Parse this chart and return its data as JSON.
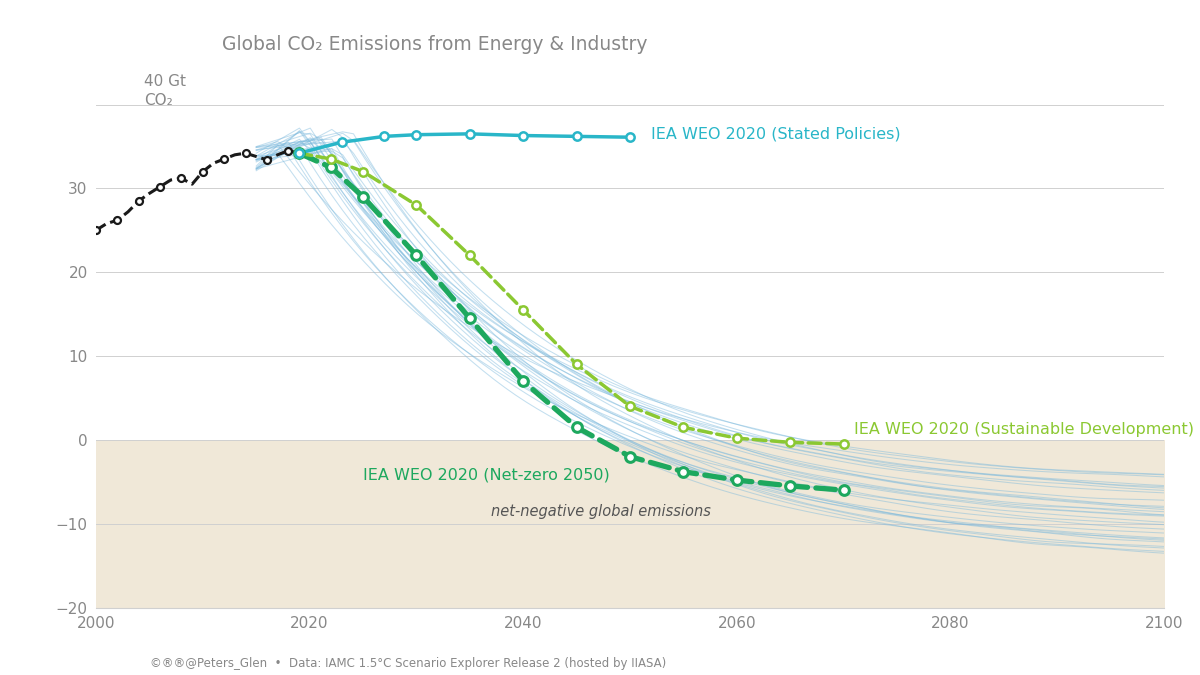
{
  "title": "Global CO₂ Emissions from Energy & Industry",
  "xlim": [
    2000,
    2100
  ],
  "ylim": [
    -20,
    42
  ],
  "yticks": [
    -20,
    -10,
    0,
    10,
    20,
    30,
    40
  ],
  "xticks": [
    2000,
    2020,
    2040,
    2060,
    2080,
    2100
  ],
  "background_color": "#ffffff",
  "neg_fill_color": "#f0e8d8",
  "footer": "©®®@Peters_Glen  •  Data: IAMC 1.5°C Scenario Explorer Release 2 (hosted by IIASA)",
  "historical_years": [
    2000,
    2001,
    2002,
    2003,
    2004,
    2005,
    2006,
    2007,
    2008,
    2009,
    2010,
    2011,
    2012,
    2013,
    2014,
    2015,
    2016,
    2017,
    2018,
    2019
  ],
  "historical_values": [
    25.0,
    25.8,
    26.2,
    27.2,
    28.5,
    29.4,
    30.2,
    31.0,
    31.2,
    30.5,
    32.0,
    33.0,
    33.5,
    34.0,
    34.2,
    33.8,
    33.4,
    34.0,
    34.5,
    34.2
  ],
  "iea_stated_years": [
    2019,
    2023,
    2027,
    2030,
    2035,
    2040,
    2045,
    2050
  ],
  "iea_stated_values": [
    34.2,
    35.5,
    36.2,
    36.4,
    36.5,
    36.3,
    36.2,
    36.1
  ],
  "iea_stated_color": "#29b6c8",
  "iea_stated_label": "IEA WEO 2020 (Stated Policies)",
  "iea_netzero_years": [
    2019,
    2022,
    2025,
    2030,
    2035,
    2040,
    2045,
    2050,
    2055,
    2060,
    2065,
    2070
  ],
  "iea_netzero_values": [
    34.2,
    32.5,
    29.0,
    22.0,
    14.5,
    7.0,
    1.5,
    -2.0,
    -3.8,
    -4.8,
    -5.5,
    -6.0
  ],
  "iea_netzero_color": "#1da85e",
  "iea_netzero_label": "IEA WEO 2020 (Net-zero 2050)",
  "iea_sustainable_years": [
    2019,
    2022,
    2025,
    2030,
    2035,
    2040,
    2045,
    2050,
    2055,
    2060,
    2065,
    2070
  ],
  "iea_sustainable_values": [
    34.2,
    33.5,
    32.0,
    28.0,
    22.0,
    15.5,
    9.0,
    4.0,
    1.5,
    0.2,
    -0.3,
    -0.5
  ],
  "iea_sustainable_color": "#8bc832",
  "iea_sustainable_label": "IEA WEO 2020 (Sustainable Development)",
  "grid_color": "#d0d0d0",
  "text_color": "#888888",
  "hist_color": "#1a1a1a",
  "blue_scenario_color": "#7ab8dc",
  "blue_scenario_alpha": 0.45,
  "net_neg_text": "net-negative global emissions",
  "net_neg_text_color": "#555555"
}
